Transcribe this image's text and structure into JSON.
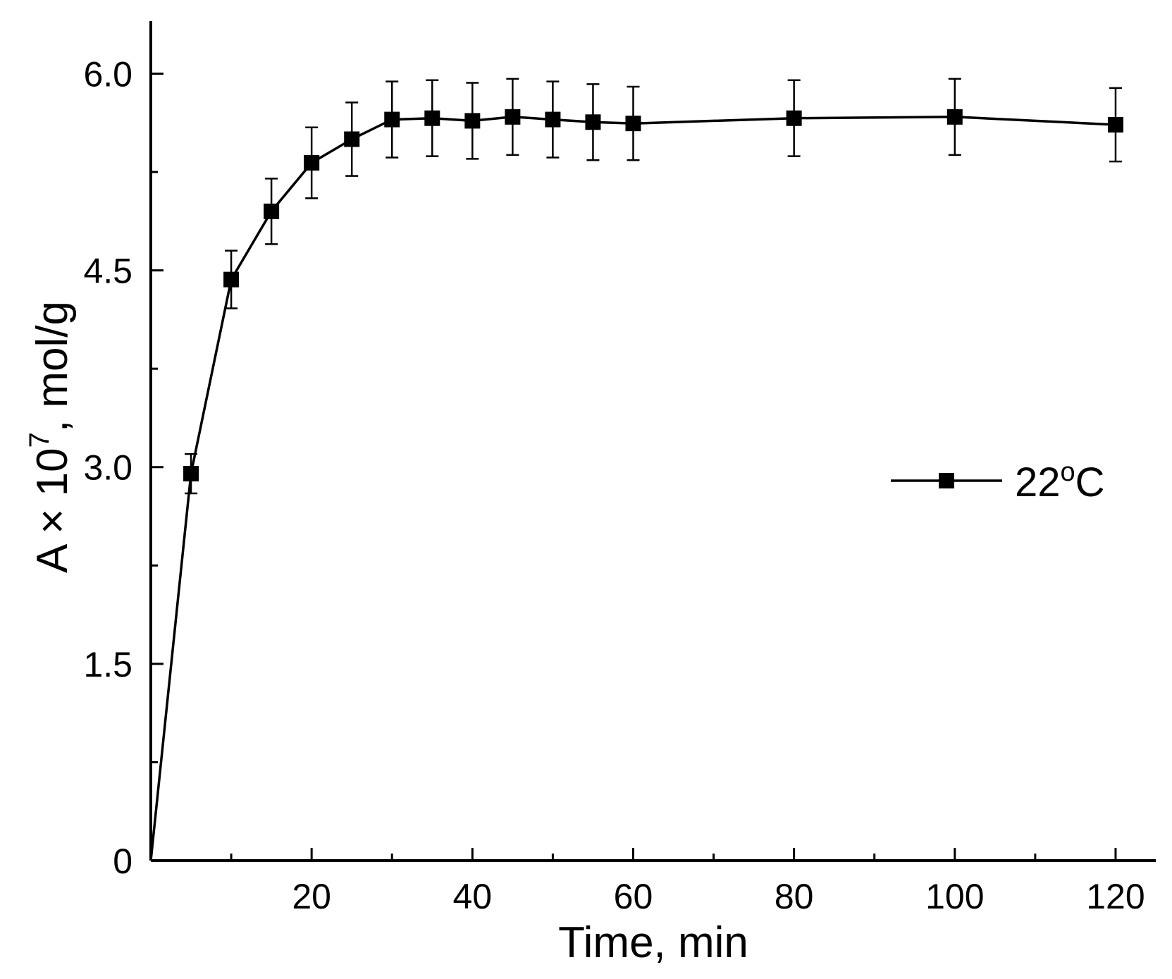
{
  "chart_data": {
    "type": "line",
    "xlabel": "Time, min",
    "ylabel_parts": [
      "A × 10",
      "7",
      ", mol/g"
    ],
    "xlim": [
      0,
      125
    ],
    "ylim": [
      0,
      6.4
    ],
    "x_ticks": [
      {
        "value": 20,
        "label": "20"
      },
      {
        "value": 40,
        "label": "40"
      },
      {
        "value": 60,
        "label": "60"
      },
      {
        "value": 80,
        "label": "80"
      },
      {
        "value": 100,
        "label": "100"
      },
      {
        "value": 120,
        "label": "120"
      }
    ],
    "x_minor_ticks": [
      10,
      30,
      50,
      70,
      90,
      110
    ],
    "y_ticks": [
      {
        "value": 0,
        "label": "0"
      },
      {
        "value": 1.5,
        "label": "1.5"
      },
      {
        "value": 3.0,
        "label": "3.0"
      },
      {
        "value": 4.5,
        "label": "4.5"
      },
      {
        "value": 6.0,
        "label": "6.0"
      }
    ],
    "y_minor_ticks": [
      0.75,
      2.25,
      3.75,
      5.25
    ],
    "grid": false,
    "legend": {
      "placement": "right",
      "marker": "square"
    },
    "series": [
      {
        "name_parts": [
          "22",
          "o",
          "C"
        ],
        "color": "#000000",
        "marker": "square",
        "origin": {
          "x": 0,
          "y": 0
        },
        "points": [
          {
            "x": 5,
            "y": 2.95,
            "err": 0.15
          },
          {
            "x": 10,
            "y": 4.43,
            "err": 0.22
          },
          {
            "x": 15,
            "y": 4.95,
            "err": 0.25
          },
          {
            "x": 20,
            "y": 5.32,
            "err": 0.27
          },
          {
            "x": 25,
            "y": 5.5,
            "err": 0.28
          },
          {
            "x": 30,
            "y": 5.65,
            "err": 0.29
          },
          {
            "x": 35,
            "y": 5.66,
            "err": 0.29
          },
          {
            "x": 40,
            "y": 5.64,
            "err": 0.29
          },
          {
            "x": 45,
            "y": 5.67,
            "err": 0.29
          },
          {
            "x": 50,
            "y": 5.65,
            "err": 0.29
          },
          {
            "x": 55,
            "y": 5.63,
            "err": 0.29
          },
          {
            "x": 60,
            "y": 5.62,
            "err": 0.28
          },
          {
            "x": 80,
            "y": 5.66,
            "err": 0.29
          },
          {
            "x": 100,
            "y": 5.67,
            "err": 0.29
          },
          {
            "x": 120,
            "y": 5.61,
            "err": 0.28
          }
        ]
      }
    ]
  }
}
